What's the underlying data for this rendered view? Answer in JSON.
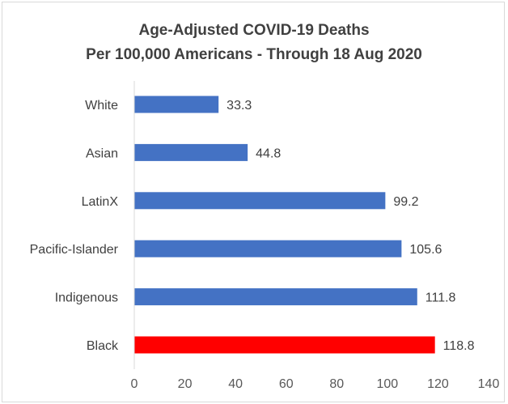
{
  "chart_data": {
    "type": "bar",
    "orientation": "horizontal",
    "title": "Age-Adjusted COVID-19 Deaths",
    "subtitle": "Per 100,000 Americans - Through 18 Aug 2020",
    "categories": [
      "White",
      "Asian",
      "LatinX",
      "Pacific-Islander",
      "Indigenous",
      "Black"
    ],
    "values": [
      33.3,
      44.8,
      99.2,
      105.6,
      111.8,
      118.8
    ],
    "value_labels": [
      "33.3",
      "44.8",
      "99.2",
      "105.6",
      "111.8",
      "118.8"
    ],
    "bar_colors": [
      "#4472c4",
      "#4472c4",
      "#4472c4",
      "#4472c4",
      "#4472c4",
      "#ff0000"
    ],
    "xlim": [
      0,
      140
    ],
    "xticks": [
      0,
      20,
      40,
      60,
      80,
      100,
      120,
      140
    ],
    "xtick_labels": [
      "0",
      "20",
      "40",
      "60",
      "80",
      "100",
      "120",
      "140"
    ],
    "grid": false,
    "legend": "none",
    "xlabel": "",
    "ylabel": ""
  }
}
